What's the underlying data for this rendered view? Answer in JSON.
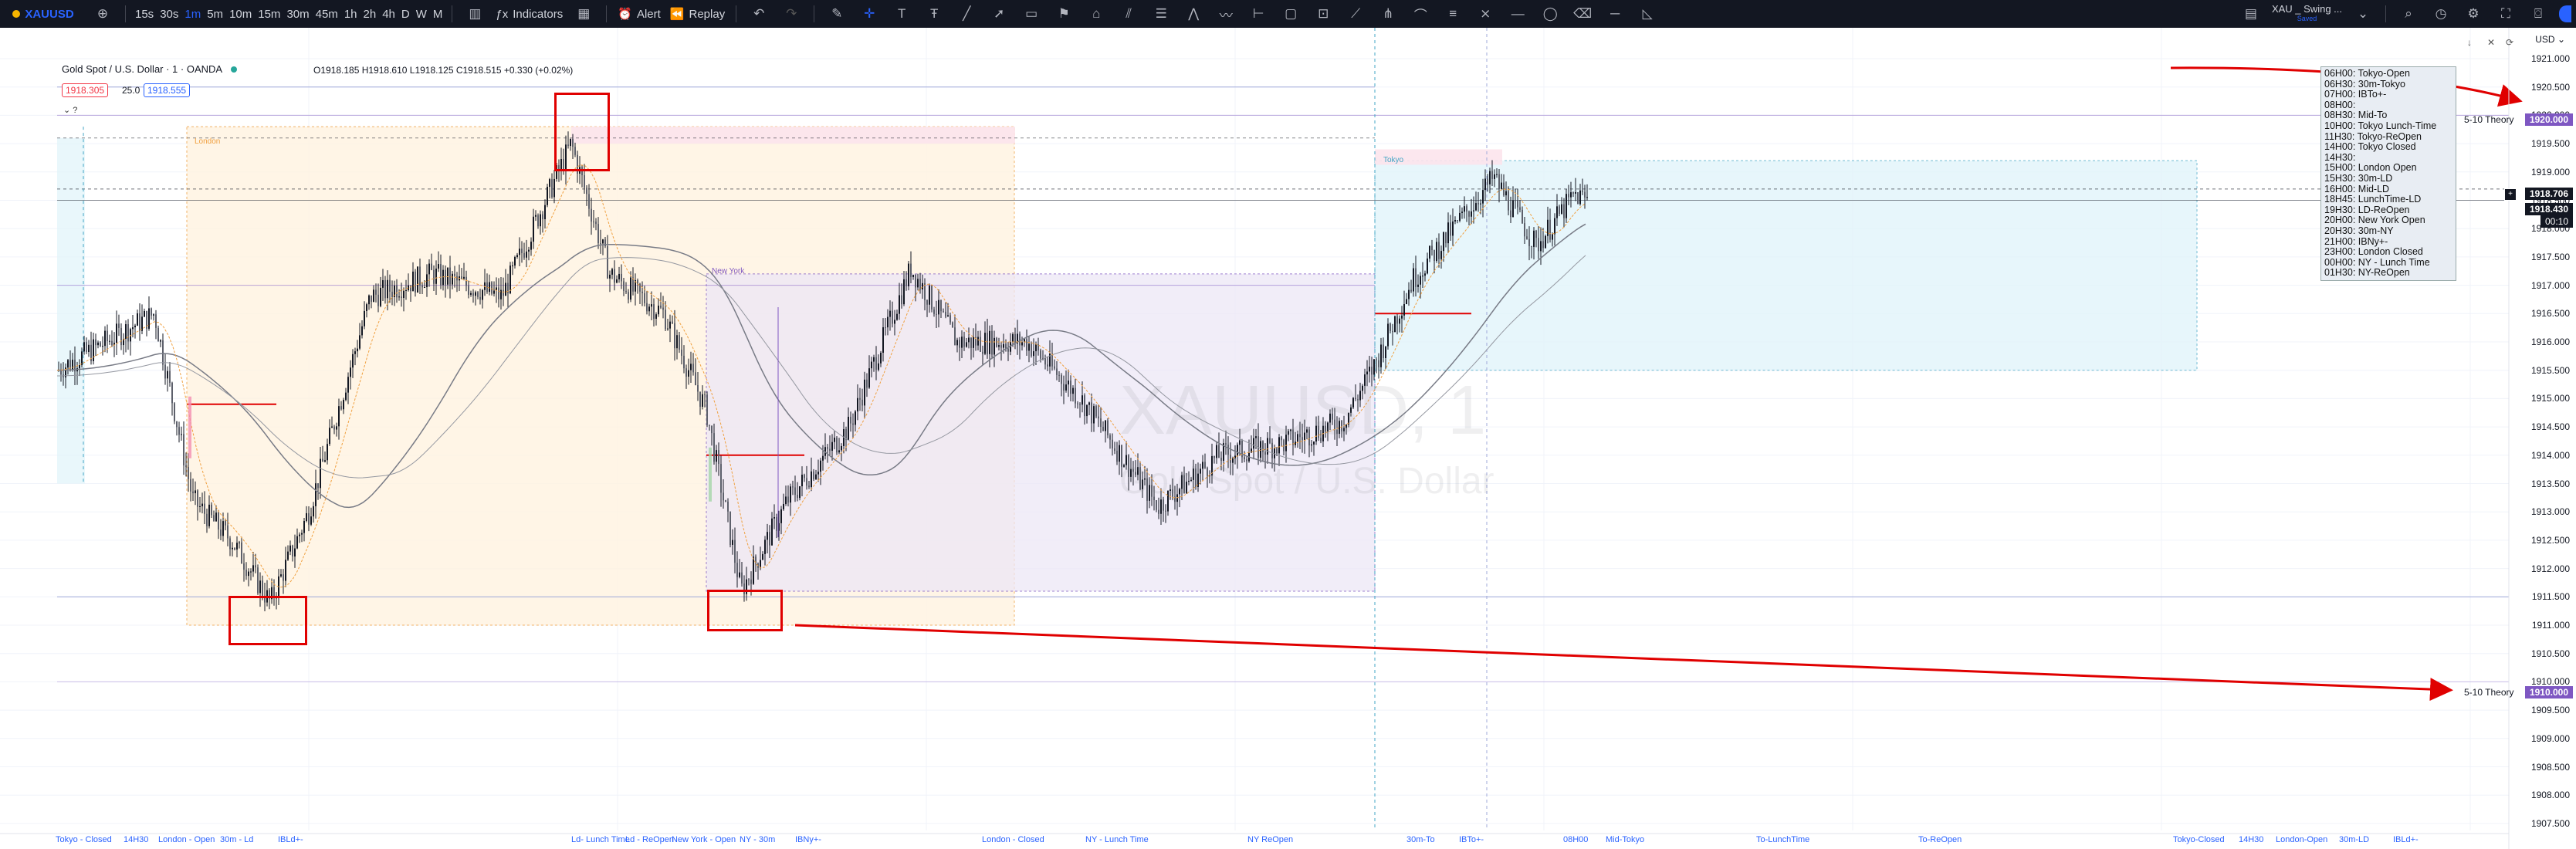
{
  "toolbar": {
    "symbol": "XAUUSD",
    "intervals": [
      "15s",
      "30s",
      "1m",
      "5m",
      "10m",
      "15m",
      "30m",
      "45m",
      "1h",
      "2h",
      "4h",
      "D",
      "W",
      "M"
    ],
    "active_interval": "1m",
    "indicators_label": "Indicators",
    "alert_label": "Alert",
    "replay_label": "Replay",
    "layout_name": "XAU _ Swing ...",
    "layout_sub": "Saved"
  },
  "header": {
    "title": "Gold Spot / U.S. Dollar · 1 · OANDA",
    "ohlc": "O1918.185 H1918.610 L1918.125 C1918.515 +0.330 (+0.02%)",
    "sell_price": "1918.305",
    "spread": "25.0",
    "buy_price": "1918.555"
  },
  "watermark": {
    "symbol": "XAUUSD, 1",
    "name": "Gold Spot / U.S. Dollar"
  },
  "currency": "USD",
  "price_axis": {
    "ticks": [
      "1921.000",
      "1920.500",
      "1920.000",
      "1919.500",
      "1919.000",
      "1918.500",
      "1918.000",
      "1917.500",
      "1917.000",
      "1916.500",
      "1916.000",
      "1915.500",
      "1915.000",
      "1914.500",
      "1914.000",
      "1913.500",
      "1913.000",
      "1912.500",
      "1912.000",
      "1911.500",
      "1911.000",
      "1910.500",
      "1910.000",
      "1909.500",
      "1909.000",
      "1908.500",
      "1908.000",
      "1907.500"
    ],
    "current_price": "1918.706",
    "second_price": "1918.430",
    "countdown": "00:10",
    "theory_high_price": "1920.000",
    "theory_low_price": "1910.000",
    "theory_label": "5-10 Theory"
  },
  "sessions": {
    "london": "London",
    "new_york": "New York",
    "tokyo": "Tokyo"
  },
  "legend": [
    "06H00: Tokyo-Open",
    "06H30: 30m-Tokyo",
    "07H00: IBTo+-",
    "08H00:",
    "08H30: Mid-To",
    "10H00: Tokyo Lunch-Time",
    "11H30: Tokyo-ReOpen",
    "14H00: Tokyo Closed",
    "14H30:",
    "15H00: London Open",
    "15H30: 30m-LD",
    "16H00: Mid-LD",
    "18H45: LunchTime-LD",
    "19H30: LD-ReOpen",
    "20H00: New York Open",
    "20H30: 30m-NY",
    "21H00: IBNy+-",
    "23H00: London Closed",
    "00H00: NY - Lunch Time",
    "01H30: NY-ReOpen"
  ],
  "time_axis": [
    "Tokyo - Closed",
    "14H30",
    "London - Open",
    "30m - Ld",
    "IBLd+-",
    "Ld- Lunch Time",
    "Ld - ReOpen",
    "New York - Open",
    "NY - 30m",
    "IBNy+-",
    "London - Closed",
    "NY - Lunch Time",
    "NY ReOpen",
    "30m-To",
    "IBTo+-",
    "08H00",
    "Mid-Tokyo",
    "To-LunchTime",
    "To-ReOpen",
    "Tokyo-Closed",
    "14H30",
    "London-Open",
    "30m-LD",
    "IBLd+-"
  ],
  "colors": {
    "up": "#131722",
    "annotation": "#e00000",
    "theory_tag": "#7e57c2",
    "accent": "#2962ff",
    "london_zone": "#fff3e0",
    "ny_zone": "#ede7f6",
    "tokyo_zone": "#e0f4fa"
  }
}
